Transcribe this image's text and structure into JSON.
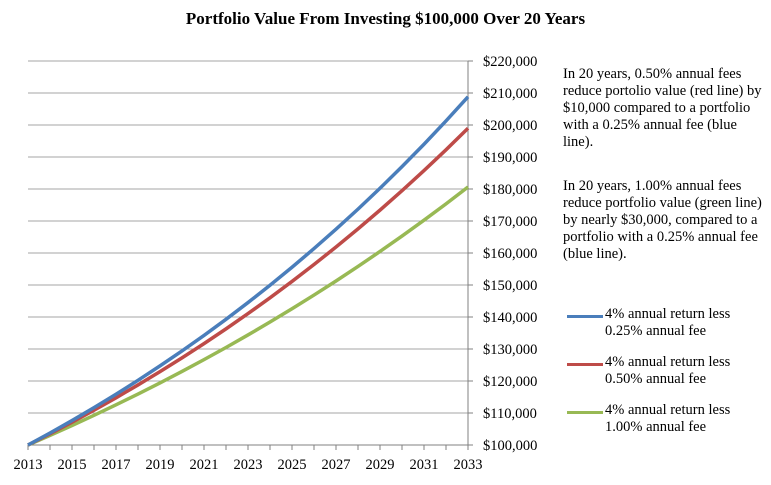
{
  "chart_data": {
    "type": "line",
    "title": "Portfolio Value From Investing $100,000 Over 20 Years",
    "x": [
      2013,
      2014,
      2015,
      2016,
      2017,
      2018,
      2019,
      2020,
      2021,
      2022,
      2023,
      2024,
      2025,
      2026,
      2027,
      2028,
      2029,
      2030,
      2031,
      2032,
      2033
    ],
    "x_tick_labels": [
      "2013",
      "2015",
      "2017",
      "2019",
      "2021",
      "2023",
      "2025",
      "2027",
      "2029",
      "2031",
      "2033"
    ],
    "y_tick_labels": [
      "$100,000",
      "$110,000",
      "$120,000",
      "$130,000",
      "$140,000",
      "$150,000",
      "$160,000",
      "$170,000",
      "$180,000",
      "$190,000",
      "$200,000",
      "$210,000",
      "$220,000"
    ],
    "xlim": [
      2013,
      2033
    ],
    "ylim": [
      100000,
      220000
    ],
    "y_axis_position": "right",
    "grid": "horizontal",
    "series": [
      {
        "name": "4% annual return less 0.25% annual fee",
        "color": "#4a7ebb",
        "values": [
          100000,
          103750,
          107641,
          111677,
          115865,
          120210,
          124718,
          129395,
          134247,
          139282,
          144505,
          149924,
          155546,
          161379,
          167431,
          173709,
          180223,
          186982,
          193993,
          201268,
          208816
        ]
      },
      {
        "name": "4% annual return less 0.50% annual fee",
        "color": "#be4b48",
        "values": [
          100000,
          103500,
          107123,
          110872,
          114752,
          118769,
          122926,
          127228,
          131681,
          136290,
          141060,
          145997,
          151107,
          156396,
          161869,
          167535,
          173399,
          179468,
          185749,
          192250,
          198979
        ]
      },
      {
        "name": "4% annual return less 1.00% annual fee",
        "color": "#98b954",
        "values": [
          100000,
          103000,
          106090,
          109273,
          112551,
          115927,
          119405,
          122987,
          126677,
          130477,
          134392,
          138423,
          142576,
          146853,
          151259,
          155797,
          160471,
          165285,
          170243,
          175351,
          180611
        ]
      }
    ]
  },
  "notes": {
    "note1": "In 20 years,  0.50% annual fees reduce portolio value (red line) by $10,000 compared to a portfolio with a 0.25% annual fee (blue line).",
    "note2": "In 20 years, 1.00% annual fees reduce portfolio value (green line) by nearly $30,000, compared to a portfolio with a 0.25% annual fee (blue line)."
  },
  "legend": [
    {
      "label": "4% annual return less 0.25% annual fee",
      "color": "#4a7ebb"
    },
    {
      "label": "4% annual return less 0.50% annual fee",
      "color": "#be4b48"
    },
    {
      "label": "4% annual return less 1.00% annual fee",
      "color": "#98b954"
    }
  ]
}
